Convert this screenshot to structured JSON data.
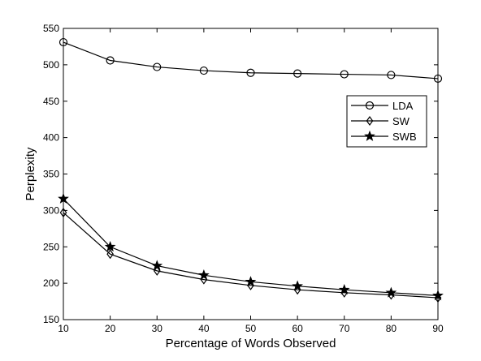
{
  "chart_data": {
    "type": "line",
    "title": "",
    "xlabel": "Percentage of Words Observed",
    "ylabel": "Perplexity",
    "xlim": [
      10,
      90
    ],
    "ylim": [
      150,
      550
    ],
    "x": [
      10,
      20,
      30,
      40,
      50,
      60,
      70,
      80,
      90
    ],
    "xticks": [
      10,
      20,
      30,
      40,
      50,
      60,
      70,
      80,
      90
    ],
    "yticks": [
      150,
      200,
      250,
      300,
      350,
      400,
      450,
      500,
      550
    ],
    "grid": false,
    "legend_position": "upper-right",
    "series": [
      {
        "name": "LDA",
        "marker": "circle",
        "values": [
          531,
          506,
          497,
          492,
          489,
          488,
          487,
          486,
          481
        ]
      },
      {
        "name": "SW",
        "marker": "diamond",
        "values": [
          297,
          240,
          217,
          205,
          197,
          191,
          187,
          184,
          180
        ]
      },
      {
        "name": "SWB",
        "marker": "star",
        "values": [
          316,
          250,
          224,
          211,
          202,
          196,
          191,
          187,
          183
        ]
      }
    ]
  }
}
